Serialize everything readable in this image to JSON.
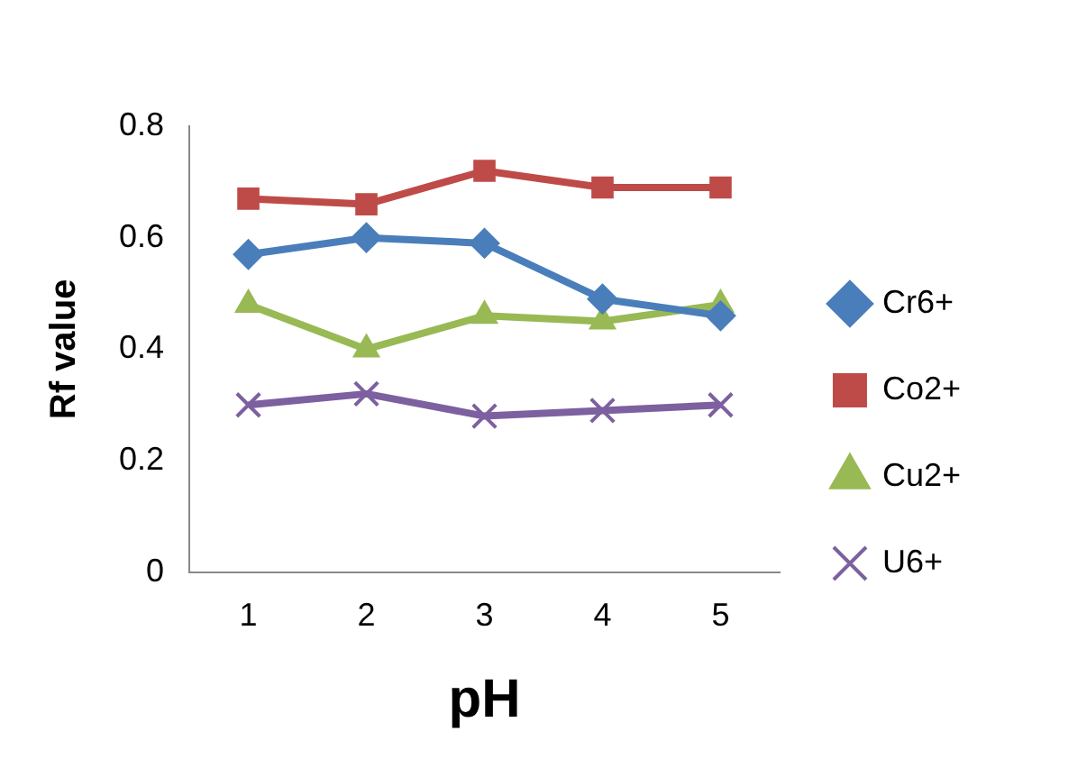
{
  "chart_data": {
    "type": "line",
    "xlabel": "pH",
    "ylabel": "Rf value",
    "categories": [
      "1",
      "2",
      "3",
      "4",
      "5"
    ],
    "ylim": [
      0,
      0.8
    ],
    "yticks": [
      0,
      0.2,
      0.4,
      0.6,
      0.8
    ],
    "grid": false,
    "legend": "right",
    "line_style": "solid",
    "series": [
      {
        "name": "Cr6+",
        "color": "#4a7ebb",
        "marker": "diamond",
        "values": [
          0.57,
          0.6,
          0.59,
          0.49,
          0.46
        ]
      },
      {
        "name": "Co2+",
        "color": "#be4b48",
        "marker": "square",
        "values": [
          0.67,
          0.66,
          0.72,
          0.69,
          0.69
        ]
      },
      {
        "name": "Cu2+",
        "color": "#98b954",
        "marker": "triangle",
        "values": [
          0.48,
          0.4,
          0.46,
          0.45,
          0.48
        ]
      },
      {
        "name": "U6+",
        "color": "#7d60a0",
        "marker": "cross",
        "values": [
          0.3,
          0.32,
          0.28,
          0.29,
          0.3
        ]
      }
    ]
  }
}
